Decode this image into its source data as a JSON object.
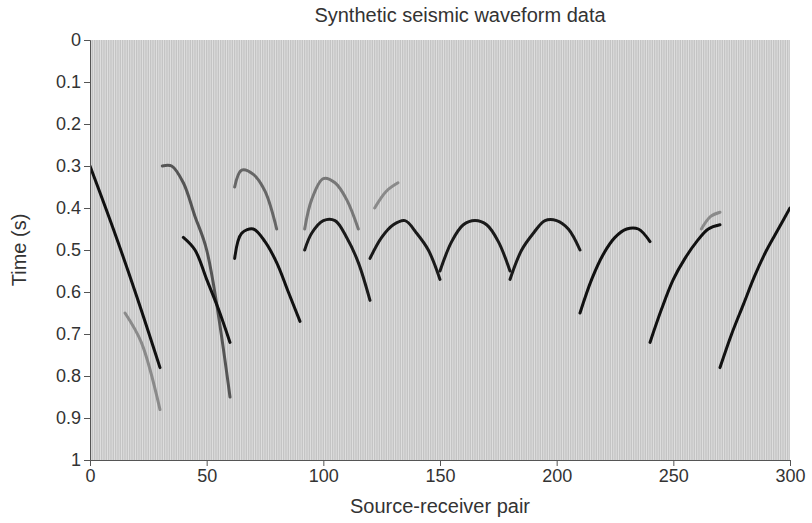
{
  "chart_data": {
    "type": "line",
    "title": "Synthetic seismic waveform data",
    "x_label": "Source-receiver pair",
    "y_label": "Time (s)",
    "xlim": [
      0,
      300
    ],
    "ylim": [
      1,
      0
    ],
    "xticks": [
      0,
      50,
      100,
      150,
      200,
      250,
      300
    ],
    "yticks": [
      0,
      0.1,
      0.2,
      0.3,
      0.4,
      0.5,
      0.6,
      0.7,
      0.8,
      0.9,
      1
    ],
    "series": [
      {
        "color": "#111111",
        "x": [
          0,
          10,
          20,
          30
        ],
        "values": [
          0.3,
          0.45,
          0.61,
          0.78
        ]
      },
      {
        "color": "#8a8a8a",
        "x": [
          15,
          22,
          30
        ],
        "values": [
          0.65,
          0.72,
          0.88
        ]
      },
      {
        "color": "#555555",
        "x": [
          31,
          35,
          40,
          45,
          50,
          60
        ],
        "values": [
          0.3,
          0.3,
          0.34,
          0.42,
          0.5,
          0.85
        ]
      },
      {
        "color": "#111111",
        "x": [
          40,
          45,
          50,
          55,
          60
        ],
        "values": [
          0.47,
          0.5,
          0.57,
          0.64,
          0.72
        ]
      },
      {
        "color": "#666666",
        "x": [
          62,
          65,
          70,
          75,
          80
        ],
        "values": [
          0.35,
          0.31,
          0.32,
          0.36,
          0.45
        ]
      },
      {
        "color": "#111111",
        "x": [
          62,
          65,
          70,
          75,
          80,
          85,
          90
        ],
        "values": [
          0.52,
          0.46,
          0.45,
          0.48,
          0.53,
          0.6,
          0.67
        ]
      },
      {
        "color": "#777777",
        "x": [
          92,
          95,
          100,
          105,
          110,
          115
        ],
        "values": [
          0.45,
          0.38,
          0.33,
          0.34,
          0.38,
          0.45
        ]
      },
      {
        "color": "#1a1a1a",
        "x": [
          92,
          95,
          100,
          105,
          110,
          115,
          120
        ],
        "values": [
          0.5,
          0.46,
          0.43,
          0.43,
          0.47,
          0.53,
          0.62
        ]
      },
      {
        "color": "#8a8a8a",
        "x": [
          122,
          127,
          132
        ],
        "values": [
          0.4,
          0.36,
          0.34
        ]
      },
      {
        "color": "#1a1a1a",
        "x": [
          120,
          125,
          130,
          135,
          140,
          145,
          150
        ],
        "values": [
          0.52,
          0.47,
          0.44,
          0.43,
          0.46,
          0.5,
          0.57
        ]
      },
      {
        "color": "#1a1a1a",
        "x": [
          150,
          155,
          160,
          165,
          170,
          175,
          180
        ],
        "values": [
          0.55,
          0.48,
          0.44,
          0.43,
          0.44,
          0.48,
          0.55
        ]
      },
      {
        "color": "#1a1a1a",
        "x": [
          180,
          185,
          190,
          195,
          200,
          205,
          210
        ],
        "values": [
          0.57,
          0.5,
          0.46,
          0.43,
          0.43,
          0.45,
          0.5
        ]
      },
      {
        "color": "#111111",
        "x": [
          210,
          215,
          220,
          225,
          230,
          235,
          240
        ],
        "values": [
          0.65,
          0.57,
          0.51,
          0.47,
          0.45,
          0.45,
          0.48
        ]
      },
      {
        "color": "#111111",
        "x": [
          240,
          245,
          250,
          255,
          260,
          265,
          270
        ],
        "values": [
          0.72,
          0.64,
          0.57,
          0.52,
          0.48,
          0.45,
          0.44
        ]
      },
      {
        "color": "#8a8a8a",
        "x": [
          262,
          266,
          270
        ],
        "values": [
          0.45,
          0.42,
          0.41
        ]
      },
      {
        "color": "#111111",
        "x": [
          270,
          275,
          280,
          285,
          290,
          295,
          300
        ],
        "values": [
          0.78,
          0.7,
          0.63,
          0.56,
          0.5,
          0.45,
          0.4
        ]
      }
    ]
  }
}
